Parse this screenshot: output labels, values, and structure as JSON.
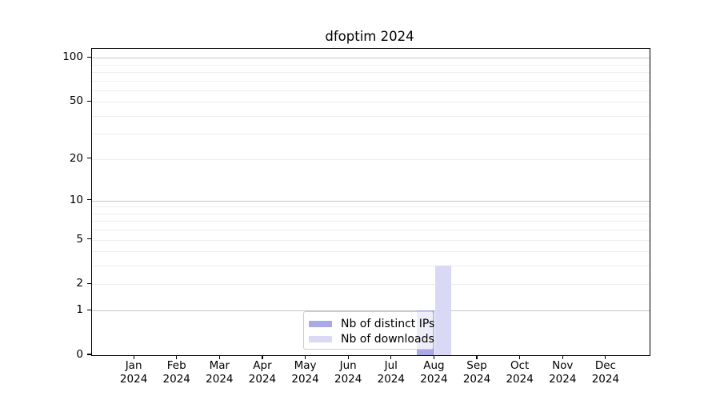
{
  "chart_data": {
    "type": "bar",
    "title": "dfoptim 2024",
    "categories": [
      "Jan",
      "Feb",
      "Mar",
      "Apr",
      "May",
      "Jun",
      "Jul",
      "Aug",
      "Sep",
      "Oct",
      "Nov",
      "Dec"
    ],
    "year_label": "2024",
    "series": [
      {
        "name": "Nb of distinct IPs",
        "color": "#a9a9ea",
        "values": [
          0,
          0,
          0,
          0,
          0,
          0,
          0,
          1,
          0,
          0,
          0,
          0
        ]
      },
      {
        "name": "Nb of downloads",
        "color": "#d9d9f6",
        "values": [
          0,
          0,
          0,
          0,
          0,
          0,
          0,
          3,
          0,
          0,
          0,
          0
        ]
      }
    ],
    "y_axis": {
      "scale": "log1p",
      "labeled_ticks": [
        0,
        1,
        2,
        5,
        10,
        20,
        50,
        100
      ],
      "major_gridlines": [
        1,
        10,
        100
      ],
      "minor_gridlines": [
        2,
        3,
        4,
        5,
        6,
        7,
        8,
        9,
        20,
        30,
        40,
        50,
        60,
        70,
        80,
        90
      ],
      "ymax": 115,
      "grid": true
    },
    "legend": {
      "location": "lower center",
      "entries": [
        "Nb of distinct IPs",
        "Nb of downloads"
      ]
    },
    "colors": {
      "axis": "#000000",
      "major_grid": "#c6c6c6",
      "minor_grid": "#ededed",
      "background": "#ffffff",
      "legend_border": "#cbcbcb"
    }
  }
}
